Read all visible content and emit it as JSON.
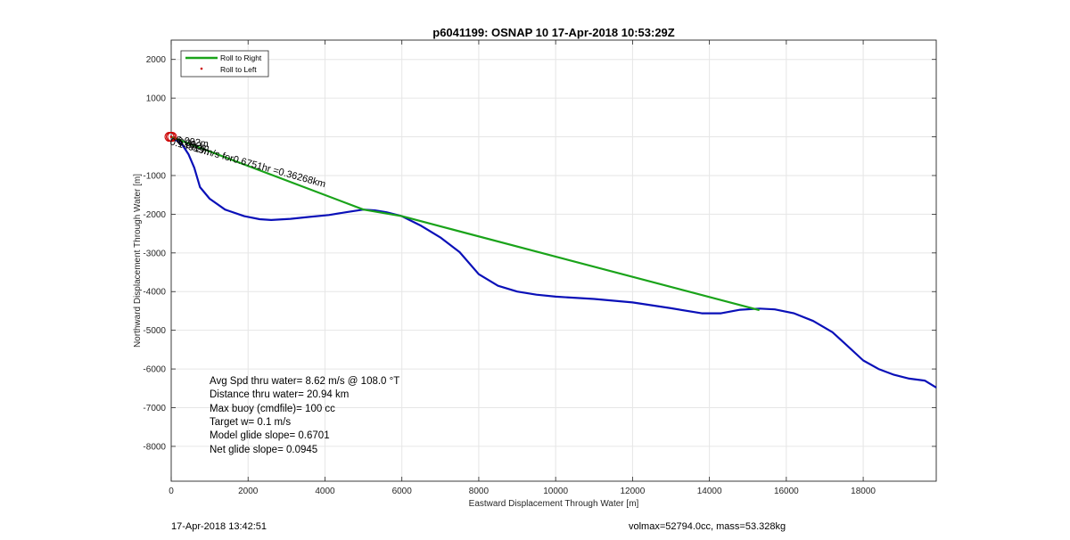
{
  "chart_data": {
    "type": "line",
    "title": "p6041199: OSNAP 10 17-Apr-2018 10:53:29Z",
    "xlabel": "Eastward Displacement Through Water [m]",
    "ylabel": "Northward Displacement Through Water [m]",
    "xlim": [
      0,
      19900
    ],
    "ylim": [
      -8900,
      2500
    ],
    "xticks": [
      0,
      2000,
      4000,
      6000,
      8000,
      10000,
      12000,
      14000,
      16000,
      18000
    ],
    "yticks": [
      2000,
      1000,
      0,
      -1000,
      -2000,
      -3000,
      -4000,
      -5000,
      -6000,
      -7000,
      -8000
    ],
    "ytick_labels": [
      "2000",
      "1000",
      "",
      "-1000",
      "-2000",
      "-3000",
      "-4000",
      "-5000",
      "-6000",
      "-7000",
      "-8000"
    ],
    "grid": true,
    "legend_position": "top-left",
    "series": [
      {
        "name": "Roll to Right",
        "color": "#1aa31a",
        "points": [
          [
            0,
            0
          ],
          [
            5000,
            -1880
          ],
          [
            6000,
            -2050
          ],
          [
            15300,
            -4480
          ]
        ]
      },
      {
        "name": "Roll to Left",
        "color": "#cc0000",
        "points": [
          [
            0,
            0
          ]
        ]
      },
      {
        "color": "#0a10b8",
        "points": [
          [
            0,
            0
          ],
          [
            150,
            -100
          ],
          [
            300,
            -220
          ],
          [
            450,
            -450
          ],
          [
            600,
            -800
          ],
          [
            750,
            -1300
          ],
          [
            1000,
            -1600
          ],
          [
            1400,
            -1880
          ],
          [
            1900,
            -2050
          ],
          [
            2300,
            -2130
          ],
          [
            2600,
            -2150
          ],
          [
            3100,
            -2120
          ],
          [
            3600,
            -2070
          ],
          [
            4100,
            -2020
          ],
          [
            4600,
            -1940
          ],
          [
            5000,
            -1880
          ],
          [
            5300,
            -1900
          ],
          [
            5600,
            -1950
          ],
          [
            6000,
            -2050
          ],
          [
            6500,
            -2300
          ],
          [
            7000,
            -2600
          ],
          [
            7500,
            -2980
          ],
          [
            8000,
            -3550
          ],
          [
            8500,
            -3850
          ],
          [
            9000,
            -4000
          ],
          [
            9500,
            -4080
          ],
          [
            10000,
            -4130
          ],
          [
            11000,
            -4190
          ],
          [
            12000,
            -4280
          ],
          [
            13000,
            -4430
          ],
          [
            13800,
            -4560
          ],
          [
            14300,
            -4560
          ],
          [
            14800,
            -4470
          ],
          [
            15300,
            -4440
          ],
          [
            15700,
            -4460
          ],
          [
            16200,
            -4560
          ],
          [
            16700,
            -4760
          ],
          [
            17200,
            -5050
          ],
          [
            17500,
            -5320
          ],
          [
            18000,
            -5780
          ],
          [
            18400,
            -6000
          ],
          [
            18800,
            -6150
          ],
          [
            19200,
            -6250
          ],
          [
            19600,
            -6300
          ],
          [
            19900,
            -6480
          ]
        ]
      }
    ],
    "annotations": {
      "start_stack": "6.092m",
      "leg_label": "0.14919m/s for0.6751hr =0.36268km"
    },
    "stats": [
      "Avg Spd thru water=  8.62 m/s @ 108.0 °T",
      "Distance thru water= 20.94 km",
      "Max buoy (cmdfile)= 100 cc",
      "Target w= 0.1 m/s",
      "Model glide slope= 0.6701",
      "Net glide slope= 0.0945"
    ],
    "footer": {
      "date": "17-Apr-2018 13:42:51",
      "volmass": "volmax=52794.0cc, mass=53.328kg"
    }
  }
}
